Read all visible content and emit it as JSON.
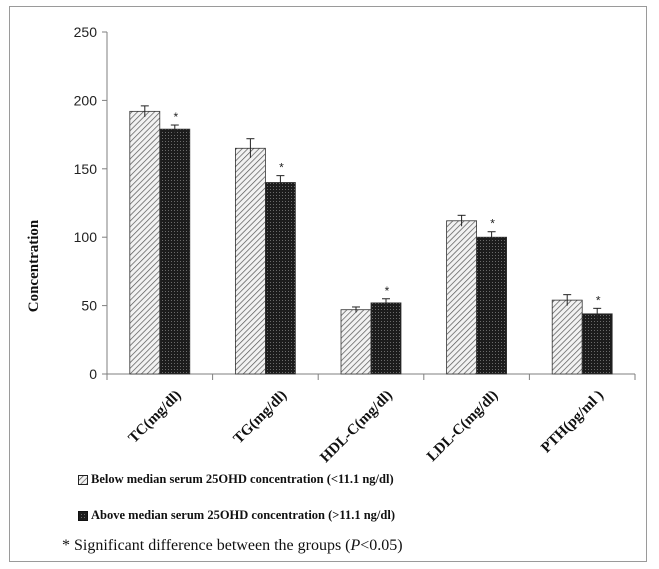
{
  "chart_data": {
    "type": "bar",
    "ylabel": "Concentration",
    "ylim": [
      0,
      250
    ],
    "yticks": [
      "0",
      "50",
      "100",
      "150",
      "200",
      "250"
    ],
    "categories": [
      "TC(mg/dl)",
      "TG(mg/dl)",
      "HDL-C(mg/dl)",
      "LDL-C(mg/dl)",
      "PTH(pg/ml )"
    ],
    "series": [
      {
        "name": "Below median serum 25OHD concentration (<11.1 ng/dl)",
        "values": [
          192,
          165,
          47,
          112,
          54
        ],
        "errors": [
          4,
          7,
          2,
          4,
          4
        ],
        "pattern": "diagonal-hatch"
      },
      {
        "name": "Above  median serum 25OHD concentration (>11.1 ng/dl)",
        "values": [
          179,
          140,
          52,
          100,
          44
        ],
        "errors": [
          3,
          5,
          3,
          4,
          4
        ],
        "pattern": "dense-dark",
        "significance": [
          "*",
          "*",
          "*",
          "*",
          "*"
        ]
      }
    ],
    "grid": false,
    "legend_position": "bottom"
  },
  "note": {
    "prefix": "* Significant difference between the groups (",
    "italic": "P",
    "suffix": "<0.05)"
  },
  "colors": {
    "axis": "#7f7f7f",
    "text": "#111111",
    "bar_dark": "#1a1a1a"
  }
}
